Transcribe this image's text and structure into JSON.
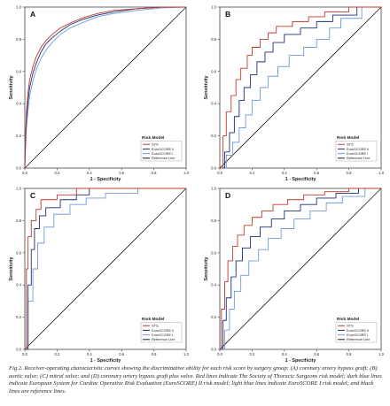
{
  "colors": {
    "sts": "#c0392b",
    "euroscore2": "#1f2f7a",
    "euroscore1": "#6f9bd8",
    "reference": "#1a1a1a",
    "border": "#444444"
  },
  "caption": "Fig 2.  Receiver-operating characteristic curves showing the discriminative ability for each risk score by surgery group: (A) coronary artery bypass graft; (B) aortic valve; (C) mitral valve; and (D) coronary artery bypass graft plus valve. Red lines indicate The Society of Thoracic Surgeons risk model; dark blue lines indicate European System for Cardiac Operative Risk Evaluation (EuroSCORE) II risk model; light blue lines indicate EuroSCORE I risk model; and black lines are reference lines.",
  "chart_data": [
    {
      "type": "line",
      "panel": "A",
      "xlabel": "1 - Specificity",
      "ylabel": "Sensitivity",
      "xlim": [
        0,
        1
      ],
      "ylim": [
        0,
        1
      ],
      "x_ticks": [
        "0.0",
        "0.2",
        "0.4",
        "0.6",
        "0.8",
        "1.0"
      ],
      "y_ticks": [
        "0.0",
        "0.2",
        "0.4",
        "0.6",
        "0.8",
        "1.0"
      ],
      "legend_title": "Risk Model",
      "legend_position": "bottom-right",
      "series": [
        {
          "name": "STS",
          "color_key": "sts",
          "x": [
            0,
            0.005,
            0.01,
            0.02,
            0.03,
            0.05,
            0.07,
            0.1,
            0.13,
            0.17,
            0.22,
            0.28,
            0.35,
            0.45,
            0.55,
            0.7,
            0.85,
            1.0
          ],
          "y": [
            0,
            0.22,
            0.35,
            0.47,
            0.55,
            0.63,
            0.69,
            0.75,
            0.79,
            0.83,
            0.87,
            0.9,
            0.93,
            0.96,
            0.98,
            0.99,
            1.0,
            1.0
          ]
        },
        {
          "name": "EuroSCORE II",
          "color_key": "euroscore2",
          "x": [
            0,
            0.005,
            0.01,
            0.02,
            0.03,
            0.05,
            0.07,
            0.1,
            0.13,
            0.17,
            0.22,
            0.28,
            0.35,
            0.45,
            0.55,
            0.7,
            0.85,
            1.0
          ],
          "y": [
            0,
            0.18,
            0.3,
            0.42,
            0.5,
            0.59,
            0.65,
            0.72,
            0.77,
            0.81,
            0.85,
            0.89,
            0.92,
            0.95,
            0.97,
            0.99,
            1.0,
            1.0
          ]
        },
        {
          "name": "EuroSCORE I",
          "color_key": "euroscore1",
          "x": [
            0,
            0.005,
            0.01,
            0.02,
            0.03,
            0.05,
            0.07,
            0.1,
            0.13,
            0.17,
            0.22,
            0.28,
            0.35,
            0.45,
            0.55,
            0.7,
            0.85,
            1.0
          ],
          "y": [
            0,
            0.14,
            0.25,
            0.36,
            0.45,
            0.54,
            0.61,
            0.68,
            0.73,
            0.78,
            0.83,
            0.87,
            0.9,
            0.94,
            0.96,
            0.98,
            0.995,
            1.0
          ]
        },
        {
          "name": "Reference Line",
          "color_key": "reference",
          "x": [
            0,
            1
          ],
          "y": [
            0,
            1
          ]
        }
      ]
    },
    {
      "type": "line",
      "panel": "B",
      "xlabel": "1 - Specificity",
      "ylabel": "Sensitivity",
      "xlim": [
        0,
        1
      ],
      "ylim": [
        0,
        1
      ],
      "x_ticks": [
        "0.0",
        "0.2",
        "0.4",
        "0.6",
        "0.8",
        "1.0"
      ],
      "y_ticks": [
        "0.0",
        "0.2",
        "0.4",
        "0.6",
        "0.8",
        "1.0"
      ],
      "legend_title": "Risk Model",
      "legend_position": "bottom-right",
      "series": [
        {
          "name": "STS",
          "color_key": "sts",
          "x": [
            0,
            0.02,
            0.02,
            0.04,
            0.04,
            0.07,
            0.07,
            0.1,
            0.1,
            0.13,
            0.13,
            0.17,
            0.17,
            0.2,
            0.2,
            0.25,
            0.25,
            0.3,
            0.3,
            0.35,
            0.35,
            0.45,
            0.45,
            0.55,
            0.55,
            0.65,
            0.65,
            0.8,
            0.8,
            1.0
          ],
          "y": [
            0,
            0,
            0.2,
            0.2,
            0.35,
            0.35,
            0.45,
            0.45,
            0.55,
            0.55,
            0.62,
            0.62,
            0.7,
            0.7,
            0.75,
            0.75,
            0.8,
            0.8,
            0.84,
            0.84,
            0.88,
            0.88,
            0.91,
            0.91,
            0.94,
            0.94,
            0.97,
            0.97,
            1.0,
            1.0
          ]
        },
        {
          "name": "EuroSCORE II",
          "color_key": "euroscore2",
          "x": [
            0,
            0.03,
            0.03,
            0.06,
            0.06,
            0.09,
            0.09,
            0.12,
            0.12,
            0.15,
            0.15,
            0.19,
            0.19,
            0.23,
            0.23,
            0.28,
            0.28,
            0.33,
            0.33,
            0.4,
            0.4,
            0.5,
            0.5,
            0.6,
            0.6,
            0.7,
            0.7,
            0.85,
            0.85,
            1.0
          ],
          "y": [
            0,
            0,
            0.1,
            0.1,
            0.22,
            0.22,
            0.32,
            0.32,
            0.42,
            0.42,
            0.5,
            0.5,
            0.58,
            0.58,
            0.66,
            0.66,
            0.72,
            0.72,
            0.78,
            0.78,
            0.83,
            0.83,
            0.87,
            0.87,
            0.91,
            0.91,
            0.95,
            0.95,
            1.0,
            1.0
          ]
        },
        {
          "name": "EuroSCORE I",
          "color_key": "euroscore1",
          "x": [
            0,
            0.04,
            0.04,
            0.08,
            0.08,
            0.12,
            0.12,
            0.16,
            0.16,
            0.2,
            0.2,
            0.25,
            0.25,
            0.3,
            0.3,
            0.36,
            0.36,
            0.43,
            0.43,
            0.52,
            0.52,
            0.6,
            0.6,
            0.68,
            0.68,
            0.75,
            0.75,
            0.88,
            0.88,
            1.0
          ],
          "y": [
            0,
            0,
            0.08,
            0.08,
            0.16,
            0.16,
            0.25,
            0.25,
            0.33,
            0.33,
            0.42,
            0.42,
            0.5,
            0.5,
            0.57,
            0.57,
            0.63,
            0.63,
            0.7,
            0.7,
            0.75,
            0.75,
            0.8,
            0.8,
            0.87,
            0.87,
            0.93,
            0.93,
            1.0,
            1.0
          ]
        },
        {
          "name": "Reference Line",
          "color_key": "reference",
          "x": [
            0,
            1
          ],
          "y": [
            0,
            1
          ]
        }
      ]
    },
    {
      "type": "line",
      "panel": "C",
      "xlabel": "1 - Specificity",
      "ylabel": "Sensitivity",
      "xlim": [
        0,
        1
      ],
      "ylim": [
        0,
        1
      ],
      "x_ticks": [
        "0.0",
        "0.2",
        "0.4",
        "0.6",
        "0.8",
        "1.0"
      ],
      "y_ticks": [
        "0.0",
        "0.2",
        "0.4",
        "0.6",
        "0.8",
        "1.0"
      ],
      "legend_title": "Risk Model",
      "legend_position": "bottom-right",
      "series": [
        {
          "name": "STS",
          "color_key": "sts",
          "x": [
            0,
            0.01,
            0.01,
            0.02,
            0.02,
            0.04,
            0.04,
            0.07,
            0.07,
            0.1,
            0.1,
            0.2,
            0.2,
            0.32,
            0.32,
            0.45,
            0.45,
            0.6,
            0.6,
            1.0
          ],
          "y": [
            0,
            0,
            0.5,
            0.5,
            0.7,
            0.7,
            0.8,
            0.8,
            0.87,
            0.87,
            0.93,
            0.93,
            0.96,
            0.96,
            1.0,
            1.0,
            1.0,
            1.0,
            1.0,
            1.0
          ]
        },
        {
          "name": "EuroSCORE II",
          "color_key": "euroscore2",
          "x": [
            0,
            0.02,
            0.02,
            0.04,
            0.04,
            0.06,
            0.06,
            0.09,
            0.09,
            0.13,
            0.13,
            0.22,
            0.22,
            0.32,
            0.32,
            0.4,
            0.4,
            0.6,
            0.6,
            1.0
          ],
          "y": [
            0,
            0,
            0.4,
            0.4,
            0.62,
            0.62,
            0.75,
            0.75,
            0.83,
            0.83,
            0.88,
            0.88,
            0.93,
            0.93,
            0.96,
            0.96,
            1.0,
            1.0,
            1.0,
            1.0
          ]
        },
        {
          "name": "EuroSCORE I",
          "color_key": "euroscore1",
          "x": [
            0,
            0.02,
            0.02,
            0.05,
            0.05,
            0.08,
            0.08,
            0.12,
            0.12,
            0.18,
            0.18,
            0.28,
            0.28,
            0.38,
            0.38,
            0.5,
            0.5,
            0.7,
            0.7,
            1.0
          ],
          "y": [
            0,
            0,
            0.3,
            0.3,
            0.5,
            0.5,
            0.66,
            0.66,
            0.76,
            0.76,
            0.84,
            0.84,
            0.9,
            0.9,
            0.94,
            0.94,
            0.97,
            0.97,
            1.0,
            1.0
          ]
        },
        {
          "name": "Reference Line",
          "color_key": "reference",
          "x": [
            0,
            1
          ],
          "y": [
            0,
            1
          ]
        }
      ]
    },
    {
      "type": "line",
      "panel": "D",
      "xlabel": "1 - Specificity",
      "ylabel": "Sensitivity",
      "xlim": [
        0,
        1
      ],
      "ylim": [
        0,
        1
      ],
      "x_ticks": [
        "0.0",
        "0.2",
        "0.4",
        "0.6",
        "0.8",
        "1.0"
      ],
      "y_ticks": [
        "0.0",
        "0.2",
        "0.4",
        "0.6",
        "0.8",
        "1.0"
      ],
      "legend_title": "Risk Model",
      "legend_position": "bottom-right",
      "series": [
        {
          "name": "STS",
          "color_key": "sts",
          "x": [
            0,
            0.01,
            0.01,
            0.03,
            0.03,
            0.05,
            0.05,
            0.08,
            0.08,
            0.11,
            0.11,
            0.15,
            0.15,
            0.2,
            0.2,
            0.26,
            0.26,
            0.33,
            0.33,
            0.42,
            0.42,
            0.52,
            0.52,
            0.65,
            0.65,
            0.8,
            0.8,
            1.0
          ],
          "y": [
            0,
            0,
            0.25,
            0.25,
            0.42,
            0.42,
            0.55,
            0.55,
            0.64,
            0.64,
            0.71,
            0.71,
            0.77,
            0.77,
            0.82,
            0.82,
            0.86,
            0.86,
            0.9,
            0.9,
            0.93,
            0.93,
            0.96,
            0.96,
            0.98,
            0.98,
            1.0,
            1.0
          ]
        },
        {
          "name": "EuroSCORE II",
          "color_key": "euroscore2",
          "x": [
            0,
            0.02,
            0.02,
            0.04,
            0.04,
            0.07,
            0.07,
            0.1,
            0.1,
            0.14,
            0.14,
            0.19,
            0.19,
            0.25,
            0.25,
            0.32,
            0.32,
            0.4,
            0.4,
            0.5,
            0.5,
            0.6,
            0.6,
            0.72,
            0.72,
            0.86,
            0.86,
            1.0
          ],
          "y": [
            0,
            0,
            0.18,
            0.18,
            0.32,
            0.32,
            0.45,
            0.45,
            0.55,
            0.55,
            0.63,
            0.63,
            0.7,
            0.7,
            0.76,
            0.76,
            0.81,
            0.81,
            0.86,
            0.86,
            0.9,
            0.9,
            0.94,
            0.94,
            0.97,
            0.97,
            1.0,
            1.0
          ]
        },
        {
          "name": "EuroSCORE I",
          "color_key": "euroscore1",
          "x": [
            0,
            0.03,
            0.03,
            0.06,
            0.06,
            0.09,
            0.09,
            0.13,
            0.13,
            0.18,
            0.18,
            0.24,
            0.24,
            0.3,
            0.3,
            0.38,
            0.38,
            0.46,
            0.46,
            0.56,
            0.56,
            0.66,
            0.66,
            0.76,
            0.76,
            0.9,
            0.9,
            1.0
          ],
          "y": [
            0,
            0,
            0.12,
            0.12,
            0.25,
            0.25,
            0.36,
            0.36,
            0.46,
            0.46,
            0.55,
            0.55,
            0.62,
            0.62,
            0.69,
            0.69,
            0.75,
            0.75,
            0.81,
            0.81,
            0.86,
            0.86,
            0.91,
            0.91,
            0.95,
            0.95,
            1.0,
            1.0
          ]
        },
        {
          "name": "Reference Line",
          "color_key": "reference",
          "x": [
            0,
            1
          ],
          "y": [
            0,
            1
          ]
        }
      ]
    }
  ]
}
